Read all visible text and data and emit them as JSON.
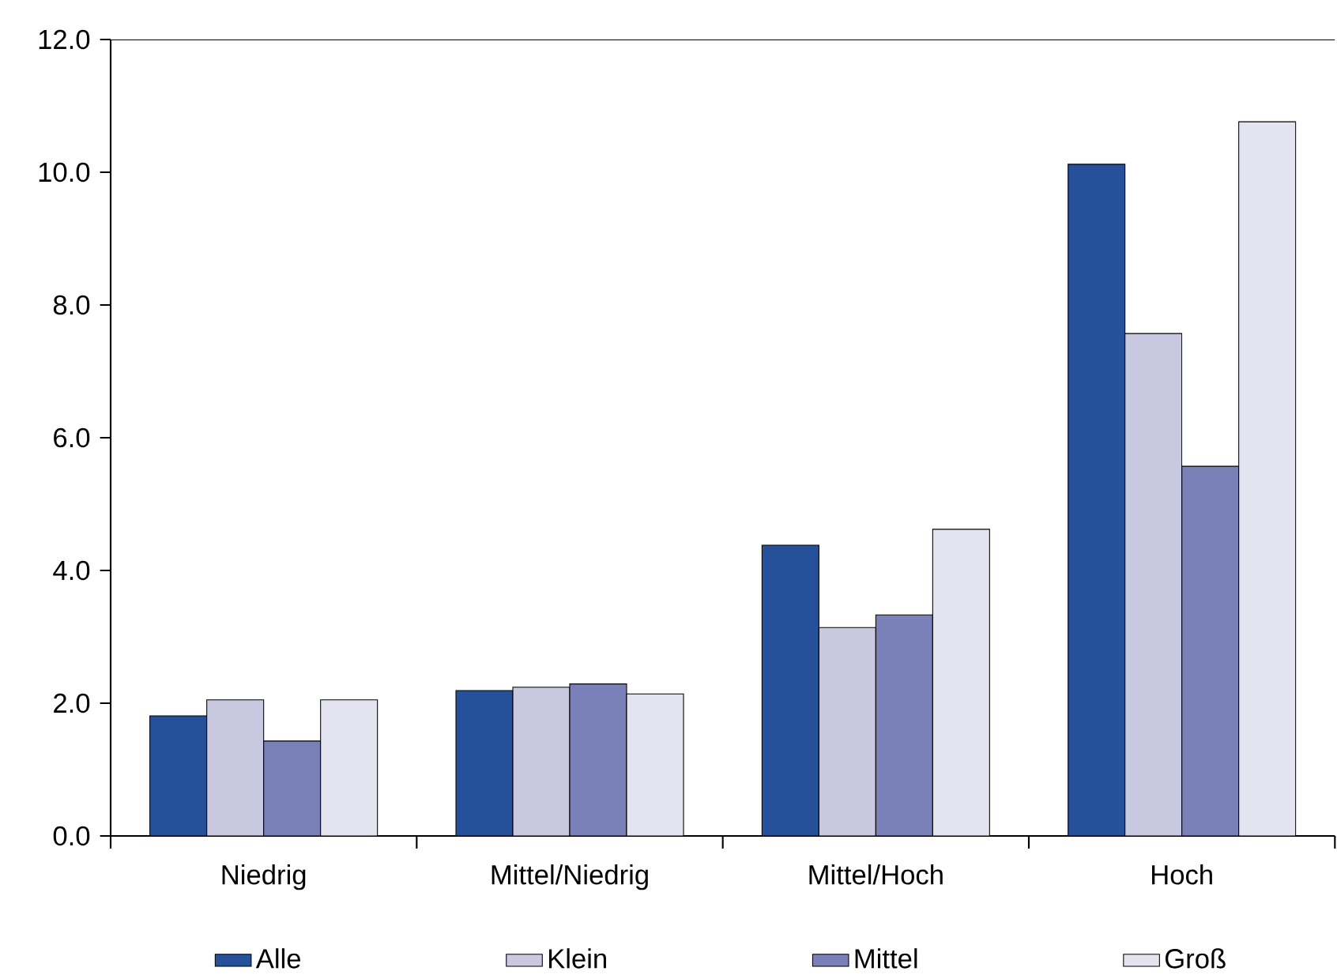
{
  "chart_data": {
    "type": "bar",
    "categories": [
      "Niedrig",
      "Mittel/Niedrig",
      "Mittel/Hoch",
      "Hoch"
    ],
    "series": [
      {
        "name": "Alle",
        "color": "#27509b",
        "values": [
          1.81,
          2.19,
          4.38,
          10.12
        ]
      },
      {
        "name": "Klein",
        "color": "#c8c8e0",
        "values": [
          2.05,
          2.24,
          3.14,
          7.57
        ]
      },
      {
        "name": "Mittel",
        "color": "#7a80b8",
        "values": [
          1.43,
          2.29,
          3.33,
          5.57
        ]
      },
      {
        "name": "Groß",
        "color": "#e4e4f0",
        "values": [
          2.05,
          2.14,
          4.62,
          10.76
        ]
      }
    ],
    "ylim": [
      0,
      12
    ],
    "yticks": [
      {
        "value": 0,
        "label": "0.0"
      },
      {
        "value": 2,
        "label": "2.0"
      },
      {
        "value": 4,
        "label": "4.0"
      },
      {
        "value": 6,
        "label": "6.0"
      },
      {
        "value": 8,
        "label": "8.0"
      },
      {
        "value": 10,
        "label": "10.0"
      },
      {
        "value": 12,
        "label": "12.0"
      }
    ],
    "grid": false,
    "legend": "bottom"
  }
}
